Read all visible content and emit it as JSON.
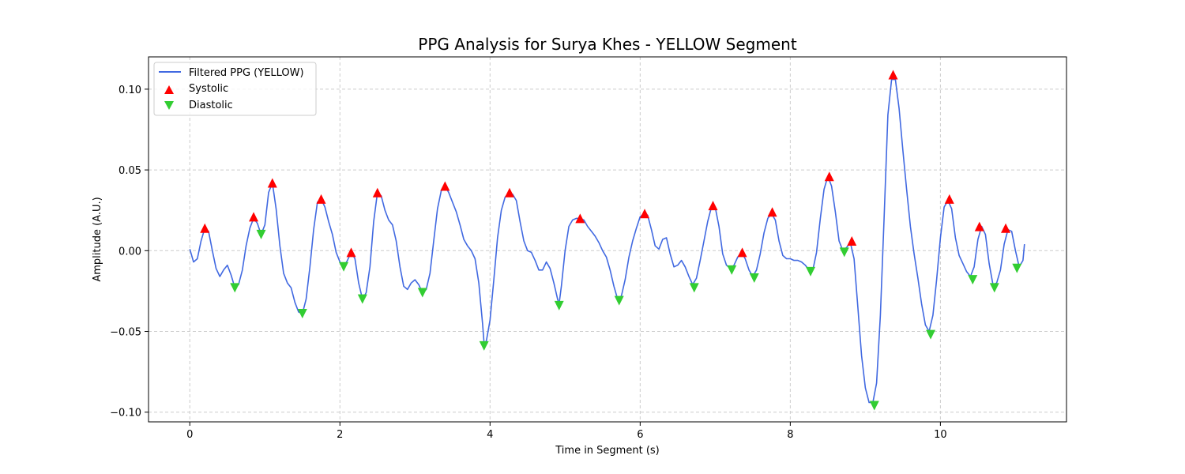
{
  "chart_data": {
    "type": "line",
    "title": "PPG Analysis for Surya Khes - YELLOW Segment",
    "xlabel": "Time in Segment (s)",
    "ylabel": "Amplitude (A.U.)",
    "xlim": [
      -0.55,
      11.68
    ],
    "ylim": [
      -0.106,
      0.12
    ],
    "x_ticks": [
      0,
      2,
      4,
      6,
      8,
      10
    ],
    "x_tick_labels": [
      "0",
      "2",
      "4",
      "6",
      "8",
      "10"
    ],
    "y_ticks": [
      -0.1,
      -0.05,
      0.0,
      0.05,
      0.1
    ],
    "y_tick_labels": [
      "−0.10",
      "−0.05",
      "0.00",
      "0.05",
      "0.10"
    ],
    "grid": true,
    "legend_position": "top-left",
    "colors": {
      "line": "#4169e1",
      "systolic": "#ff0000",
      "diastolic": "#32cd32",
      "grid": "#cccccc"
    },
    "series": [
      {
        "name": "Filtered PPG (YELLOW)",
        "points": [
          [
            0.0,
            0.001
          ],
          [
            0.05,
            -0.007
          ],
          [
            0.1,
            -0.005
          ],
          [
            0.15,
            0.006
          ],
          [
            0.2,
            0.014
          ],
          [
            0.25,
            0.012
          ],
          [
            0.3,
            0.0
          ],
          [
            0.35,
            -0.011
          ],
          [
            0.4,
            -0.016
          ],
          [
            0.45,
            -0.012
          ],
          [
            0.5,
            -0.009
          ],
          [
            0.55,
            -0.015
          ],
          [
            0.6,
            -0.023
          ],
          [
            0.65,
            -0.021
          ],
          [
            0.7,
            -0.012
          ],
          [
            0.75,
            0.003
          ],
          [
            0.8,
            0.014
          ],
          [
            0.85,
            0.02
          ],
          [
            0.9,
            0.017
          ],
          [
            0.95,
            0.01
          ],
          [
            1.0,
            0.016
          ],
          [
            1.05,
            0.036
          ],
          [
            1.1,
            0.042
          ],
          [
            1.15,
            0.026
          ],
          [
            1.2,
            0.003
          ],
          [
            1.25,
            -0.014
          ],
          [
            1.3,
            -0.02
          ],
          [
            1.35,
            -0.023
          ],
          [
            1.4,
            -0.032
          ],
          [
            1.45,
            -0.038
          ],
          [
            1.5,
            -0.039
          ],
          [
            1.55,
            -0.03
          ],
          [
            1.6,
            -0.01
          ],
          [
            1.65,
            0.013
          ],
          [
            1.7,
            0.03
          ],
          [
            1.75,
            0.032
          ],
          [
            1.8,
            0.027
          ],
          [
            1.85,
            0.018
          ],
          [
            1.9,
            0.01
          ],
          [
            1.95,
            -0.001
          ],
          [
            2.0,
            -0.007
          ],
          [
            2.05,
            -0.01
          ],
          [
            2.1,
            -0.006
          ],
          [
            2.15,
            -0.001
          ],
          [
            2.2,
            -0.005
          ],
          [
            2.25,
            -0.02
          ],
          [
            2.3,
            -0.03
          ],
          [
            2.35,
            -0.026
          ],
          [
            2.4,
            -0.01
          ],
          [
            2.45,
            0.018
          ],
          [
            2.5,
            0.036
          ],
          [
            2.55,
            0.034
          ],
          [
            2.6,
            0.025
          ],
          [
            2.65,
            0.019
          ],
          [
            2.7,
            0.016
          ],
          [
            2.75,
            0.006
          ],
          [
            2.8,
            -0.01
          ],
          [
            2.85,
            -0.022
          ],
          [
            2.9,
            -0.024
          ],
          [
            2.95,
            -0.02
          ],
          [
            3.0,
            -0.018
          ],
          [
            3.05,
            -0.021
          ],
          [
            3.1,
            -0.026
          ],
          [
            3.15,
            -0.024
          ],
          [
            3.2,
            -0.014
          ],
          [
            3.25,
            0.006
          ],
          [
            3.3,
            0.026
          ],
          [
            3.35,
            0.037
          ],
          [
            3.4,
            0.04
          ],
          [
            3.45,
            0.036
          ],
          [
            3.5,
            0.03
          ],
          [
            3.55,
            0.024
          ],
          [
            3.6,
            0.016
          ],
          [
            3.65,
            0.007
          ],
          [
            3.7,
            0.003
          ],
          [
            3.75,
            0.0
          ],
          [
            3.8,
            -0.005
          ],
          [
            3.85,
            -0.02
          ],
          [
            3.9,
            -0.045
          ],
          [
            3.92,
            -0.057
          ],
          [
            3.95,
            -0.056
          ],
          [
            4.0,
            -0.043
          ],
          [
            4.05,
            -0.018
          ],
          [
            4.1,
            0.008
          ],
          [
            4.15,
            0.025
          ],
          [
            4.2,
            0.033
          ],
          [
            4.25,
            0.036
          ],
          [
            4.3,
            0.035
          ],
          [
            4.35,
            0.031
          ],
          [
            4.4,
            0.018
          ],
          [
            4.45,
            0.006
          ],
          [
            4.5,
            0.0
          ],
          [
            4.55,
            -0.001
          ],
          [
            4.6,
            -0.006
          ],
          [
            4.65,
            -0.012
          ],
          [
            4.7,
            -0.012
          ],
          [
            4.75,
            -0.007
          ],
          [
            4.8,
            -0.011
          ],
          [
            4.85,
            -0.02
          ],
          [
            4.9,
            -0.03
          ],
          [
            4.92,
            -0.033
          ],
          [
            4.95,
            -0.022
          ],
          [
            5.0,
            0.0
          ],
          [
            5.05,
            0.015
          ],
          [
            5.1,
            0.019
          ],
          [
            5.15,
            0.02
          ],
          [
            5.2,
            0.02
          ],
          [
            5.25,
            0.019
          ],
          [
            5.3,
            0.015
          ],
          [
            5.35,
            0.012
          ],
          [
            5.4,
            0.009
          ],
          [
            5.45,
            0.005
          ],
          [
            5.5,
            0.0
          ],
          [
            5.55,
            -0.004
          ],
          [
            5.6,
            -0.012
          ],
          [
            5.65,
            -0.022
          ],
          [
            5.7,
            -0.03
          ],
          [
            5.75,
            -0.028
          ],
          [
            5.8,
            -0.018
          ],
          [
            5.85,
            -0.004
          ],
          [
            5.9,
            0.006
          ],
          [
            5.95,
            0.014
          ],
          [
            6.0,
            0.021
          ],
          [
            6.05,
            0.023
          ],
          [
            6.1,
            0.022
          ],
          [
            6.15,
            0.013
          ],
          [
            6.2,
            0.003
          ],
          [
            6.25,
            0.001
          ],
          [
            6.3,
            0.007
          ],
          [
            6.35,
            0.008
          ],
          [
            6.4,
            -0.002
          ],
          [
            6.45,
            -0.01
          ],
          [
            6.5,
            -0.009
          ],
          [
            6.55,
            -0.006
          ],
          [
            6.6,
            -0.01
          ],
          [
            6.65,
            -0.016
          ],
          [
            6.7,
            -0.021
          ],
          [
            6.75,
            -0.017
          ],
          [
            6.8,
            -0.006
          ],
          [
            6.85,
            0.006
          ],
          [
            6.9,
            0.018
          ],
          [
            6.95,
            0.027
          ],
          [
            7.0,
            0.027
          ],
          [
            7.05,
            0.015
          ],
          [
            7.1,
            -0.002
          ],
          [
            7.15,
            -0.009
          ],
          [
            7.2,
            -0.011
          ],
          [
            7.25,
            -0.009
          ],
          [
            7.3,
            -0.004
          ],
          [
            7.35,
            -0.001
          ],
          [
            7.4,
            -0.005
          ],
          [
            7.45,
            -0.012
          ],
          [
            7.5,
            -0.016
          ],
          [
            7.55,
            -0.012
          ],
          [
            7.6,
            -0.002
          ],
          [
            7.65,
            0.011
          ],
          [
            7.7,
            0.02
          ],
          [
            7.75,
            0.023
          ],
          [
            7.8,
            0.019
          ],
          [
            7.85,
            0.006
          ],
          [
            7.9,
            -0.003
          ],
          [
            7.95,
            -0.005
          ],
          [
            8.0,
            -0.005
          ],
          [
            8.05,
            -0.006
          ],
          [
            8.1,
            -0.006
          ],
          [
            8.15,
            -0.007
          ],
          [
            8.2,
            -0.009
          ],
          [
            8.25,
            -0.012
          ],
          [
            8.3,
            -0.012
          ],
          [
            8.35,
            -0.001
          ],
          [
            8.4,
            0.02
          ],
          [
            8.45,
            0.038
          ],
          [
            8.5,
            0.046
          ],
          [
            8.55,
            0.04
          ],
          [
            8.6,
            0.024
          ],
          [
            8.65,
            0.006
          ],
          [
            8.7,
            0.0
          ],
          [
            8.75,
            0.002
          ],
          [
            8.8,
            0.005
          ],
          [
            8.85,
            -0.005
          ],
          [
            8.9,
            -0.035
          ],
          [
            8.95,
            -0.065
          ],
          [
            9.0,
            -0.085
          ],
          [
            9.05,
            -0.094
          ],
          [
            9.1,
            -0.094
          ],
          [
            9.15,
            -0.082
          ],
          [
            9.2,
            -0.04
          ],
          [
            9.25,
            0.02
          ],
          [
            9.3,
            0.084
          ],
          [
            9.35,
            0.106
          ],
          [
            9.4,
            0.106
          ],
          [
            9.45,
            0.088
          ],
          [
            9.5,
            0.062
          ],
          [
            9.55,
            0.038
          ],
          [
            9.6,
            0.015
          ],
          [
            9.65,
            -0.002
          ],
          [
            9.7,
            -0.017
          ],
          [
            9.75,
            -0.033
          ],
          [
            9.8,
            -0.046
          ],
          [
            9.85,
            -0.05
          ],
          [
            9.9,
            -0.04
          ],
          [
            9.95,
            -0.018
          ],
          [
            10.0,
            0.008
          ],
          [
            10.05,
            0.027
          ],
          [
            10.1,
            0.031
          ],
          [
            10.15,
            0.026
          ],
          [
            10.2,
            0.008
          ],
          [
            10.25,
            -0.003
          ],
          [
            10.3,
            -0.008
          ],
          [
            10.35,
            -0.013
          ],
          [
            10.4,
            -0.016
          ],
          [
            10.45,
            -0.01
          ],
          [
            10.5,
            0.007
          ],
          [
            10.55,
            0.015
          ],
          [
            10.6,
            0.01
          ],
          [
            10.65,
            -0.008
          ],
          [
            10.7,
            -0.021
          ],
          [
            10.75,
            -0.02
          ],
          [
            10.8,
            -0.012
          ],
          [
            10.85,
            0.004
          ],
          [
            10.9,
            0.013
          ],
          [
            10.95,
            0.012
          ],
          [
            11.0,
            0.0
          ],
          [
            11.05,
            -0.01
          ],
          [
            11.1,
            -0.006
          ],
          [
            11.12,
            0.004
          ]
        ]
      },
      {
        "name": "Systolic",
        "marker": "triangle-up",
        "points": [
          [
            0.2,
            0.014
          ],
          [
            0.85,
            0.021
          ],
          [
            1.1,
            0.042
          ],
          [
            1.75,
            0.032
          ],
          [
            2.15,
            -0.001
          ],
          [
            2.5,
            0.036
          ],
          [
            3.4,
            0.04
          ],
          [
            4.26,
            0.036
          ],
          [
            5.2,
            0.02
          ],
          [
            6.06,
            0.023
          ],
          [
            6.97,
            0.028
          ],
          [
            7.36,
            -0.001
          ],
          [
            7.76,
            0.024
          ],
          [
            8.52,
            0.046
          ],
          [
            8.82,
            0.006
          ],
          [
            9.37,
            0.109
          ],
          [
            10.12,
            0.032
          ],
          [
            10.52,
            0.015
          ],
          [
            10.87,
            0.014
          ]
        ]
      },
      {
        "name": "Diastolic",
        "marker": "triangle-down",
        "points": [
          [
            0.6,
            -0.023
          ],
          [
            0.95,
            0.01
          ],
          [
            1.5,
            -0.039
          ],
          [
            2.05,
            -0.01
          ],
          [
            2.3,
            -0.03
          ],
          [
            3.1,
            -0.026
          ],
          [
            3.92,
            -0.059
          ],
          [
            4.92,
            -0.034
          ],
          [
            5.72,
            -0.031
          ],
          [
            6.72,
            -0.023
          ],
          [
            7.22,
            -0.012
          ],
          [
            7.52,
            -0.017
          ],
          [
            8.27,
            -0.013
          ],
          [
            8.72,
            -0.001
          ],
          [
            9.12,
            -0.096
          ],
          [
            9.87,
            -0.052
          ],
          [
            10.43,
            -0.018
          ],
          [
            10.72,
            -0.023
          ],
          [
            11.02,
            -0.011
          ]
        ]
      }
    ]
  }
}
